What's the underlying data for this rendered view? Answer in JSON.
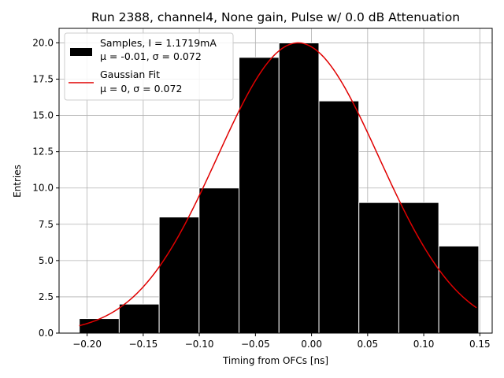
{
  "chart_data": {
    "type": "bar",
    "title": "Run 2388, channel4, None gain, Pulse w/ 0.0 dB Attenuation",
    "xlabel": "Timing from OFCs [ns]",
    "ylabel": "Entries",
    "xlim": [
      -0.225,
      0.161
    ],
    "ylim": [
      0,
      21
    ],
    "xticks": [
      -0.2,
      -0.15,
      -0.1,
      -0.05,
      0.0,
      0.05,
      0.1,
      0.15
    ],
    "xtick_labels": [
      "−0.20",
      "−0.15",
      "−0.10",
      "−0.05",
      "0.00",
      "0.05",
      "0.10",
      "0.15"
    ],
    "yticks": [
      0,
      2.5,
      5,
      7.5,
      10,
      12.5,
      15,
      17.5,
      20
    ],
    "ytick_labels": [
      "0.0",
      "2.5",
      "5.0",
      "7.5",
      "10.0",
      "12.5",
      "15.0",
      "17.5",
      "20.0"
    ],
    "grid": true,
    "bin_edges": [
      -0.207,
      -0.1714,
      -0.1358,
      -0.1002,
      -0.0646,
      -0.029,
      0.0066,
      0.0422,
      0.0778,
      0.1134,
      0.149
    ],
    "histogram": {
      "name": "Samples, I = 1.1719mA",
      "values": [
        1,
        2,
        8,
        10,
        19,
        20,
        16,
        9,
        9,
        6
      ],
      "color": "#000000"
    },
    "fit": {
      "name": "Gaussian Fit",
      "amplitude": 20.0,
      "mean": -0.012,
      "sigma": 0.072,
      "x_range": [
        -0.207,
        0.147
      ],
      "color": "#e00000"
    },
    "legend": {
      "position": "top-left",
      "entries": [
        {
          "line1": "Samples, I = 1.1719mA",
          "line2": "μ = -0.01, σ = 0.072"
        },
        {
          "line1": "Gaussian Fit",
          "line2": "μ = 0, σ = 0.072"
        }
      ]
    }
  }
}
